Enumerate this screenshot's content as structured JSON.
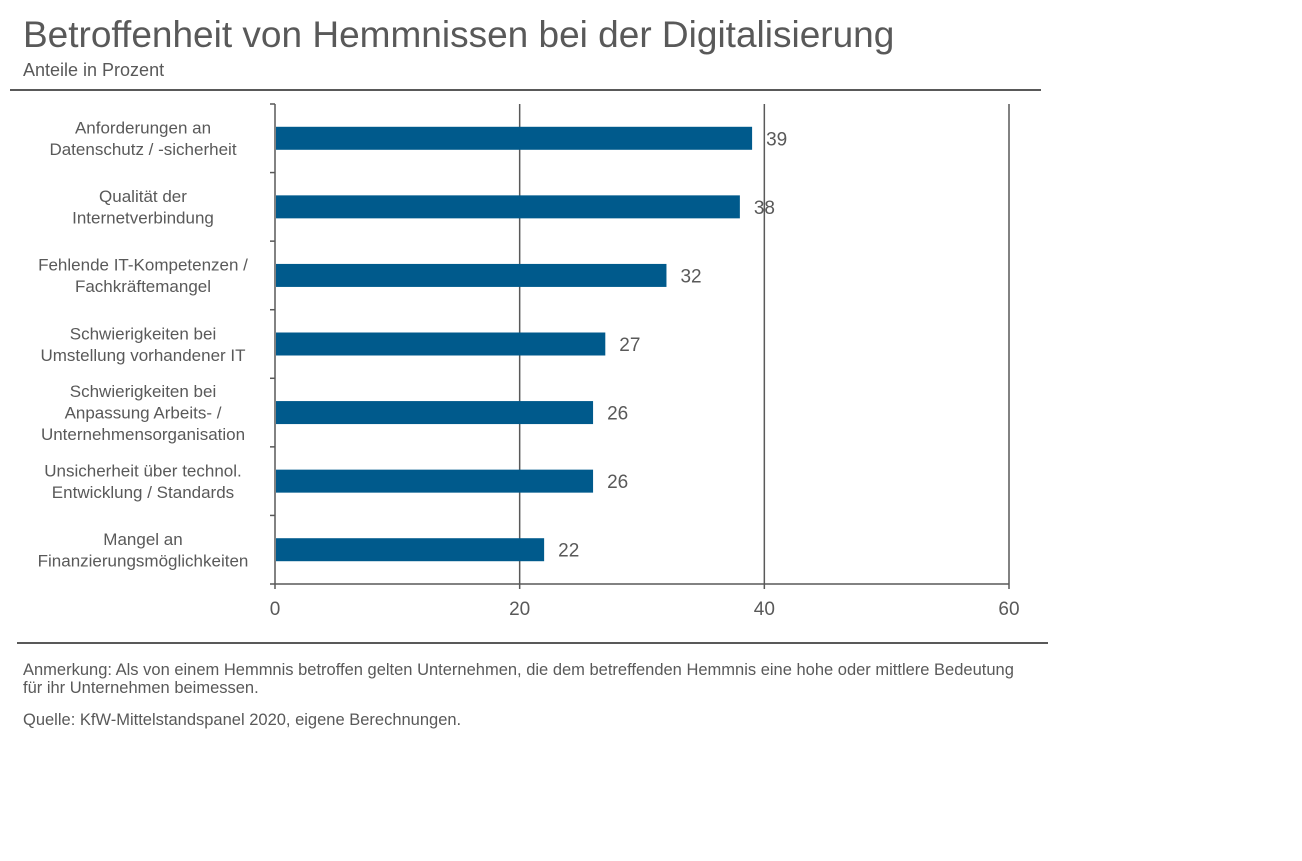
{
  "header": {
    "title": "Betroffenheit von Hemmnissen bei der Digitalisierung",
    "subtitle": "Anteile in Prozent"
  },
  "chart_data": {
    "type": "bar",
    "orientation": "horizontal",
    "categories": [
      [
        "Anforderungen an",
        "Datenschutz / -sicherheit"
      ],
      [
        "Qualität der",
        "Internetverbindung"
      ],
      [
        "Fehlende IT-Kompetenzen /",
        "Fachkräftemangel"
      ],
      [
        "Schwierigkeiten bei",
        "Umstellung  vorhandener IT"
      ],
      [
        "Schwierigkeiten bei",
        "Anpassung Arbeits- /",
        "Unternehmensorganisation"
      ],
      [
        "Unsicherheit über technol.",
        "Entwicklung / Standards"
      ],
      [
        "Mangel an",
        "Finanzierungsmöglichkeiten"
      ]
    ],
    "values": [
      39,
      38,
      32,
      27,
      26,
      26,
      22
    ],
    "data_labels": [
      "39",
      "38",
      "32",
      "27",
      "26",
      "26",
      "22"
    ],
    "xlim": [
      0,
      60
    ],
    "xticks": [
      0,
      20,
      40,
      60
    ],
    "grid": true,
    "bar_color": "#005a8c",
    "xlabel": "",
    "ylabel": ""
  },
  "footer": {
    "note": "Anmerkung: Als von einem Hemmnis betroffen gelten Unternehmen, die dem betreffenden Hemmnis eine hohe oder mittlere Bedeutung für ihr Unternehmen beimessen.",
    "source": "Quelle: KfW-Mittelstandspanel 2020, eigene Berechnungen."
  }
}
